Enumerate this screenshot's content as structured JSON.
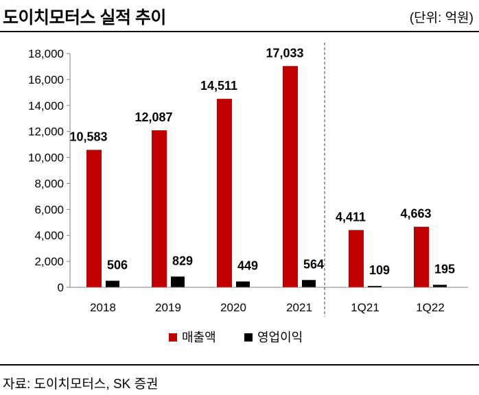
{
  "header": {
    "title": "도이치모터스 실적 추이",
    "unit": "(단위: 억원)"
  },
  "footer": {
    "source": "자료: 도이치모터스, SK 증권"
  },
  "colors": {
    "sales": "#c00000",
    "op": "#000000"
  },
  "chart_data": {
    "type": "bar",
    "title": "도이치모터스 실적 추이",
    "unit": "(단위: 억원)",
    "categories": [
      "2018",
      "2019",
      "2020",
      "2021",
      "1Q21",
      "1Q22"
    ],
    "series": [
      {
        "name": "매출액",
        "values": [
          10583,
          12087,
          14511,
          17033,
          4411,
          4663
        ],
        "labels": [
          "10,583",
          "12,087",
          "14,511",
          "17,033",
          "4,411",
          "4,663"
        ]
      },
      {
        "name": "영업이익",
        "values": [
          506,
          829,
          449,
          564,
          109,
          195
        ],
        "labels": [
          "506",
          "829",
          "449",
          "564",
          "109",
          "195"
        ]
      }
    ],
    "ylim": [
      0,
      18000
    ],
    "yticks": [
      0,
      2000,
      4000,
      6000,
      8000,
      10000,
      12000,
      14000,
      16000,
      18000
    ],
    "ytick_labels": [
      "0",
      "2,000",
      "4,000",
      "6,000",
      "8,000",
      "10,000",
      "12,000",
      "14,000",
      "16,000",
      "18,000"
    ],
    "legend": [
      "매출액",
      "영업이익"
    ],
    "legend_position": "bottom-center",
    "divider_after": "2021",
    "grid": false
  }
}
